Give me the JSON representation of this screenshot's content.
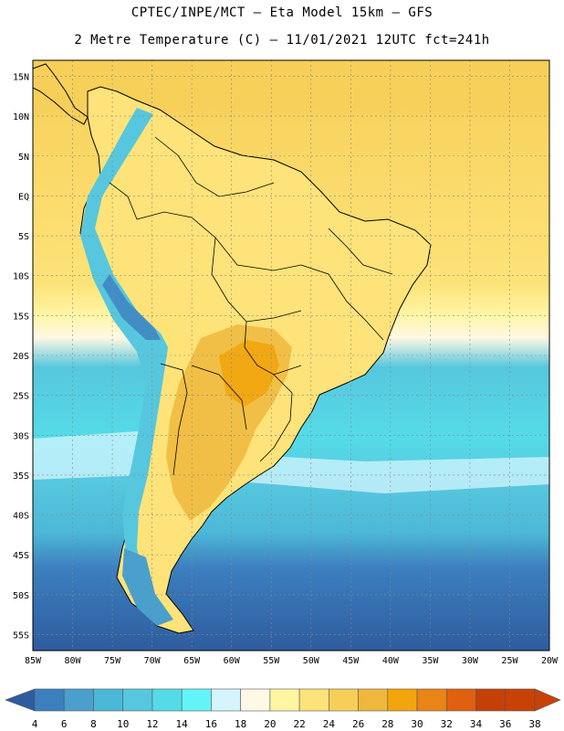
{
  "header": {
    "line1": "CPTEC/INPE/MCT –  Eta Model 15km – GFS",
    "line2": "2 Metre Temperature (C) – 11/01/2021 12UTC fct=241h"
  },
  "map": {
    "region": "South America",
    "lat_labels": [
      "15N",
      "10N",
      "5N",
      "EQ",
      "5S",
      "10S",
      "15S",
      "20S",
      "25S",
      "30S",
      "35S",
      "40S",
      "45S",
      "50S",
      "55S"
    ],
    "lon_labels": [
      "85W",
      "80W",
      "75W",
      "70W",
      "65W",
      "60W",
      "55W",
      "50W",
      "45W",
      "40W",
      "35W",
      "30W",
      "25W",
      "20W"
    ],
    "lon_range": [
      -85,
      -20
    ],
    "lat_range": [
      -57,
      17
    ]
  },
  "colorbar": {
    "levels": [
      "4",
      "6",
      "8",
      "10",
      "12",
      "14",
      "16",
      "18",
      "20",
      "22",
      "24",
      "26",
      "28",
      "30",
      "32",
      "34",
      "36",
      "38"
    ],
    "colors": [
      "#2e5c9e",
      "#3c7fbf",
      "#4a9fcc",
      "#4cb8d8",
      "#56c7de",
      "#55dbe8",
      "#63f4fa",
      "#d4f5fd",
      "#fff8e5",
      "#fff5a3",
      "#fde379",
      "#f7cf58",
      "#efb83c",
      "#f2a50c",
      "#e98515",
      "#e06010",
      "#c54005",
      "#c84206"
    ]
  }
}
